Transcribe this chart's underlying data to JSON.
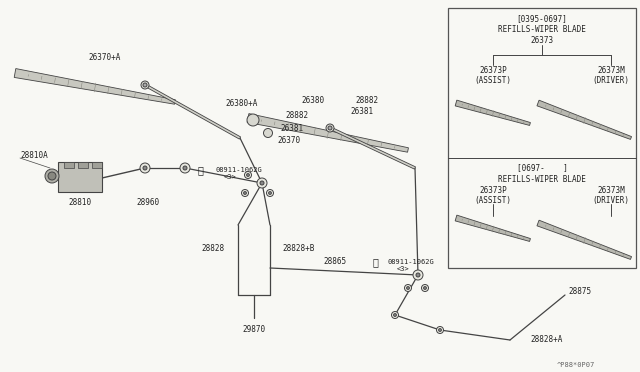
{
  "bg_color": "#f8f8f4",
  "line_color": "#444444",
  "text_color": "#222222",
  "diagram_note": "^P88*0P07",
  "labels": {
    "wiper_arm_left": "26370+A",
    "wiper_arm_right": "26380+A",
    "wiper_blade_left_label": "26370",
    "wiper_blade_right_label": "26380",
    "nut1": "28882",
    "bolt1": "26381",
    "nut2": "28882",
    "bolt2": "26381",
    "motor_body": "28810",
    "motor_top": "28810A",
    "motor_link": "28960",
    "linkage_nut1": "08911-1062G",
    "linkage_nut1b": "<3>",
    "linkage_nut2": "08911-1062G",
    "linkage_nut2b": "<3>",
    "pivot_left": "28828",
    "pivot_right": "28828+B",
    "pivot_ext": "28828+A",
    "link_bar": "28865",
    "link_pivot": "29870",
    "bracket": "28875",
    "refill_box1_header": "[0395-0697]",
    "refill_box1_title": "REFILLS-WIPER BLADE",
    "refill_box1_part": "26373",
    "refill_box1_left_part": "26373P",
    "refill_box1_left_label": "(ASSIST)",
    "refill_box1_right_part": "26373M",
    "refill_box1_right_label": "(DRIVER)",
    "refill_box2_header": "[0697-    ]",
    "refill_box2_title": "REFILLS-WIPER BLADE",
    "refill_box2_left_part": "26373P",
    "refill_box2_left_label": "(ASSIST)",
    "refill_box2_right_part": "26373M",
    "refill_box2_right_label": "(DRIVER)"
  }
}
